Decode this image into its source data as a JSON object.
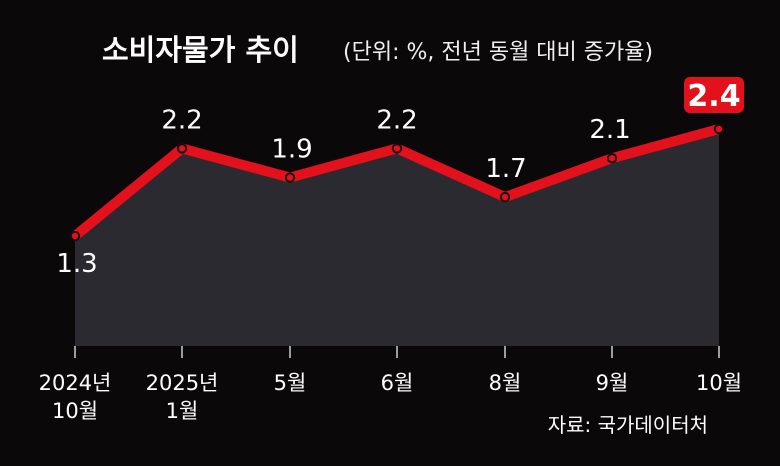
{
  "title": "소비자물가 추이",
  "subtitle": "(단위: %, 전년 동월 대비 증가율)",
  "source": "자료: 국가데이터처",
  "colors": {
    "background": "#0b0809",
    "line": "#e3111b",
    "area": "#2b2a30",
    "highlight_badge": "#e3111b"
  },
  "chart_data": {
    "type": "area",
    "title": "소비자물가 추이",
    "unit": "%",
    "categories": [
      "2024년 10월",
      "2025년 1월",
      "5월",
      "6월",
      "8월",
      "9월",
      "10월"
    ],
    "category_labels": [
      [
        "2024년",
        "10월"
      ],
      [
        "2025년",
        "1월"
      ],
      [
        "5월"
      ],
      [
        "6월"
      ],
      [
        "8월"
      ],
      [
        "9월"
      ],
      [
        "10월"
      ]
    ],
    "values": [
      1.3,
      2.2,
      1.9,
      2.2,
      1.7,
      2.1,
      2.4
    ],
    "value_labels": [
      "1.3",
      "2.2",
      "1.9",
      "2.2",
      "1.7",
      "2.1",
      "2.4"
    ],
    "highlight_index": 6,
    "grid": false,
    "legend": "none"
  }
}
